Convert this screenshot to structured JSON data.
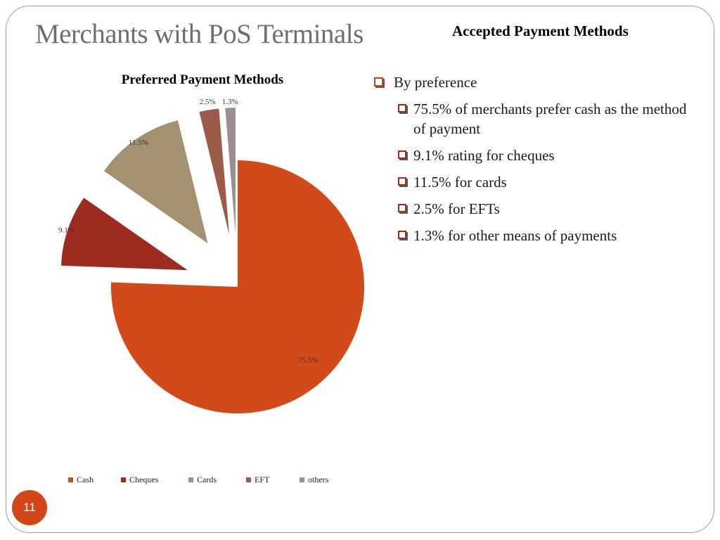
{
  "slide": {
    "title": "Merchants with PoS Terminals",
    "section_heading": "Accepted Payment Methods",
    "page_number": "11"
  },
  "bullets": {
    "main": "By preference",
    "items": [
      "75.5% of merchants prefer cash as the method of payment",
      "9.1% rating for cheques",
      "11.5% for cards",
      "2.5% for EFTs",
      "1.3% for other means of payments"
    ]
  },
  "chart_data": {
    "type": "pie",
    "title": "Preferred Payment Methods",
    "categories": [
      "Cash",
      "Cheques",
      "Cards",
      "EFT",
      "others"
    ],
    "values": [
      75.5,
      9.1,
      11.5,
      2.5,
      1.3
    ],
    "labels": [
      "75.5%",
      "9.1%",
      "11.5%",
      "2.5%",
      "1.3%"
    ],
    "colors": [
      "#d2491a",
      "#9e2b20",
      "#a39170",
      "#9c5a48",
      "#9a8f92"
    ],
    "exploded": true,
    "legend_position": "bottom"
  }
}
